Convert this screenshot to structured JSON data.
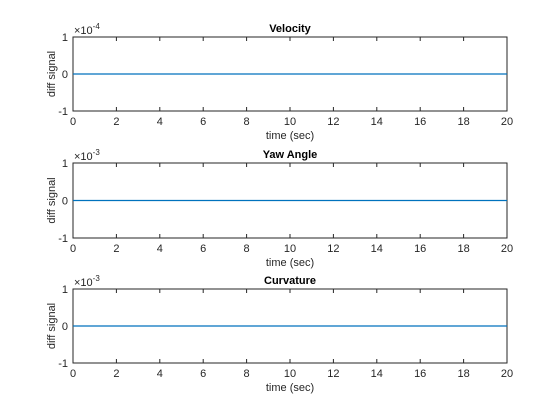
{
  "chart_data": [
    {
      "type": "line",
      "title": "Velocity",
      "xlabel": "time (sec)",
      "ylabel": "diff signal",
      "xlim": [
        0,
        20
      ],
      "ylim": [
        -1,
        1
      ],
      "exponent_base": "×10",
      "exponent_power": "-4",
      "xticks": [
        "0",
        "2",
        "4",
        "6",
        "8",
        "10",
        "12",
        "14",
        "16",
        "18",
        "20"
      ],
      "yticks": [
        "-1",
        "0",
        "1"
      ],
      "series": [
        {
          "x": [
            0,
            20
          ],
          "values": [
            0,
            0
          ],
          "color": "#0072bd"
        }
      ]
    },
    {
      "type": "line",
      "title": "Yaw Angle",
      "xlabel": "time (sec)",
      "ylabel": "diff signal",
      "xlim": [
        0,
        20
      ],
      "ylim": [
        -1,
        1
      ],
      "exponent_base": "×10",
      "exponent_power": "-3",
      "xticks": [
        "0",
        "2",
        "4",
        "6",
        "8",
        "10",
        "12",
        "14",
        "16",
        "18",
        "20"
      ],
      "yticks": [
        "-1",
        "0",
        "1"
      ],
      "series": [
        {
          "x": [
            0,
            20
          ],
          "values": [
            0,
            0
          ],
          "color": "#0072bd"
        }
      ]
    },
    {
      "type": "line",
      "title": "Curvature",
      "xlabel": "time (sec)",
      "ylabel": "diff signal",
      "xlim": [
        0,
        20
      ],
      "ylim": [
        -1,
        1
      ],
      "exponent_base": "×10",
      "exponent_power": "-3",
      "xticks": [
        "0",
        "2",
        "4",
        "6",
        "8",
        "10",
        "12",
        "14",
        "16",
        "18",
        "20"
      ],
      "yticks": [
        "-1",
        "0",
        "1"
      ],
      "series": [
        {
          "x": [
            0,
            20
          ],
          "values": [
            0,
            0
          ],
          "color": "#0072bd"
        }
      ]
    }
  ]
}
